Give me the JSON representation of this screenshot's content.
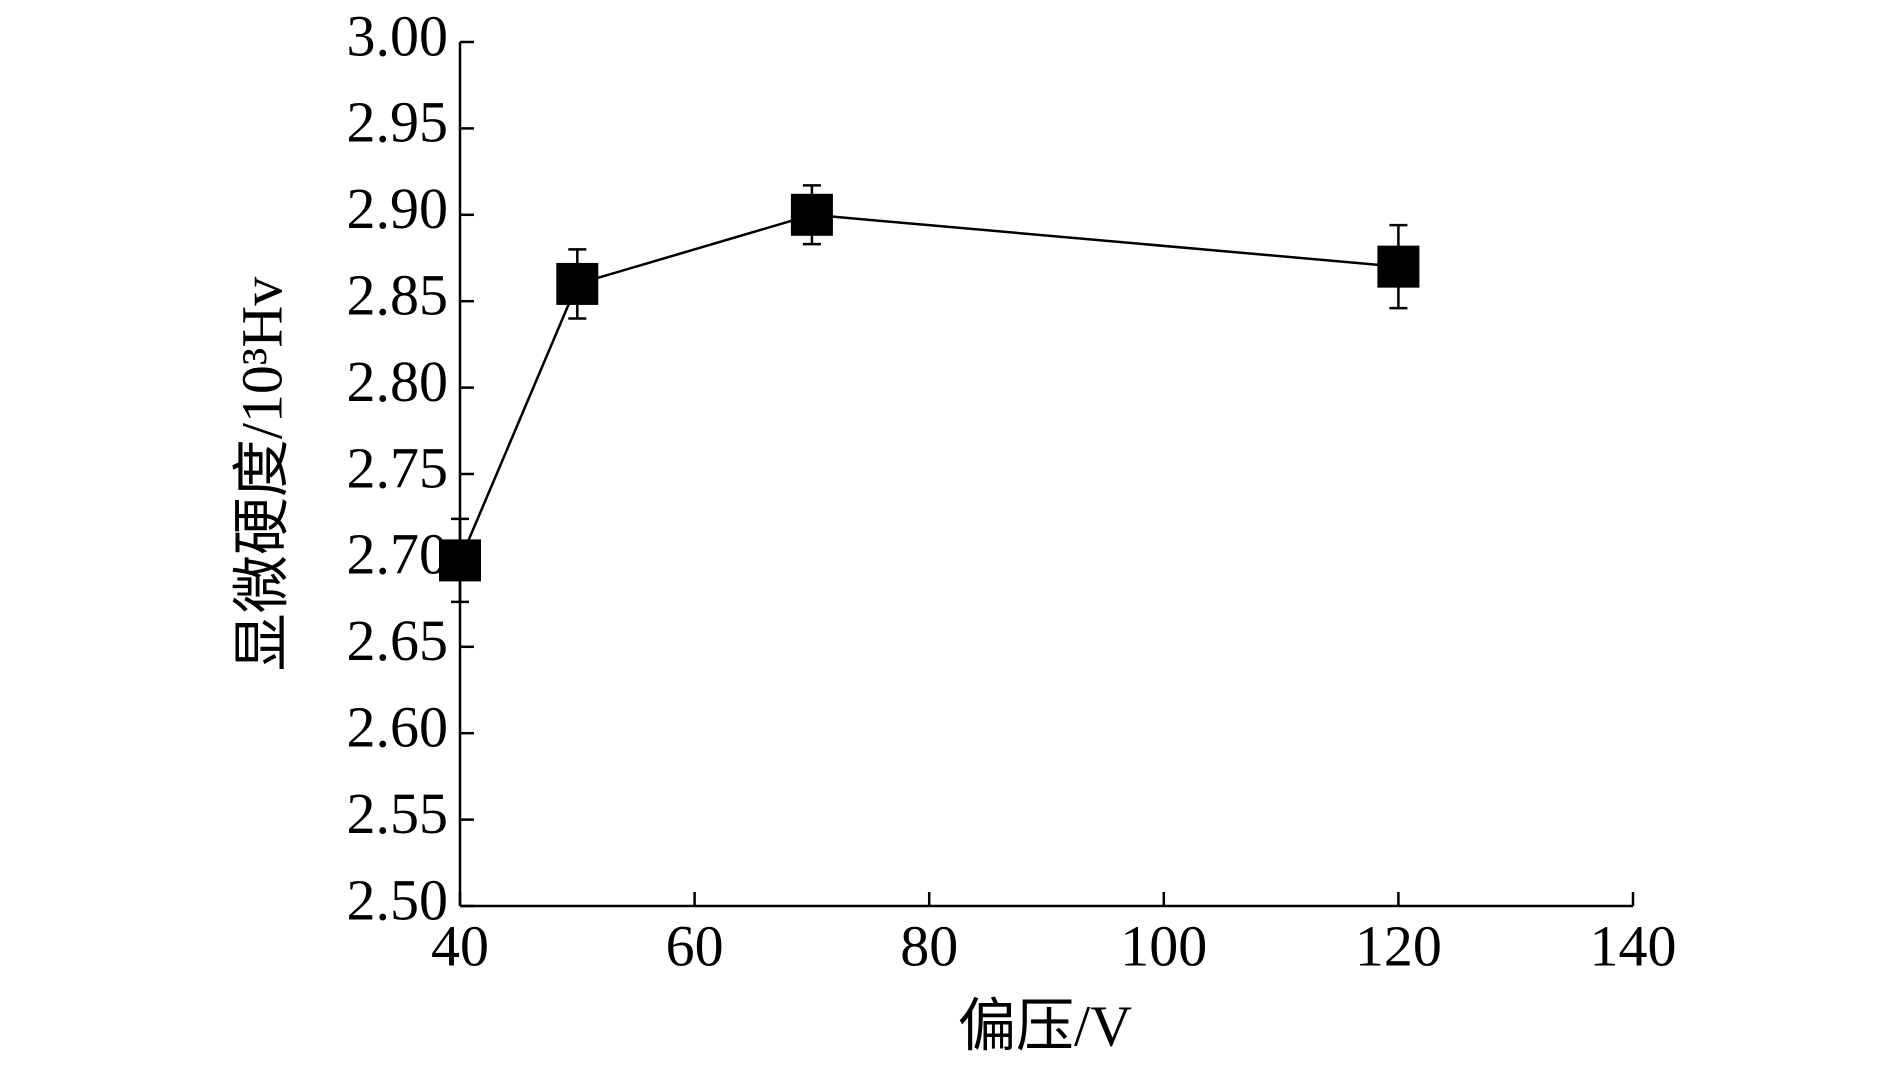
{
  "chart_data": {
    "type": "line",
    "x_label": "偏压/V",
    "y_label": "显微硬度/10³Hv",
    "x": [
      40,
      50,
      70,
      120
    ],
    "series": [
      {
        "color": "#000000",
        "values": [
          2.7,
          2.86,
          2.9,
          2.87
        ],
        "errors": [
          0.024,
          0.02,
          0.017,
          0.024
        ]
      }
    ],
    "xlim": [
      40,
      140
    ],
    "xticks": [
      40,
      60,
      80,
      100,
      120,
      140
    ],
    "ylim": [
      2.5,
      3.0
    ],
    "yticks": [
      {
        "value": 2.5,
        "label": "2.50"
      },
      {
        "value": 2.55,
        "label": "2.55"
      },
      {
        "value": 2.6,
        "label": "2.60"
      },
      {
        "value": 2.65,
        "label": "2.65"
      },
      {
        "value": 2.7,
        "label": "2.70"
      },
      {
        "value": 2.75,
        "label": "2.75"
      },
      {
        "value": 2.8,
        "label": "2.80"
      },
      {
        "value": 2.85,
        "label": "2.85"
      },
      {
        "value": 2.9,
        "label": "2.90"
      },
      {
        "value": 2.95,
        "label": "2.95"
      },
      {
        "value": 3.0,
        "label": "3.00"
      }
    ],
    "grid": false
  }
}
